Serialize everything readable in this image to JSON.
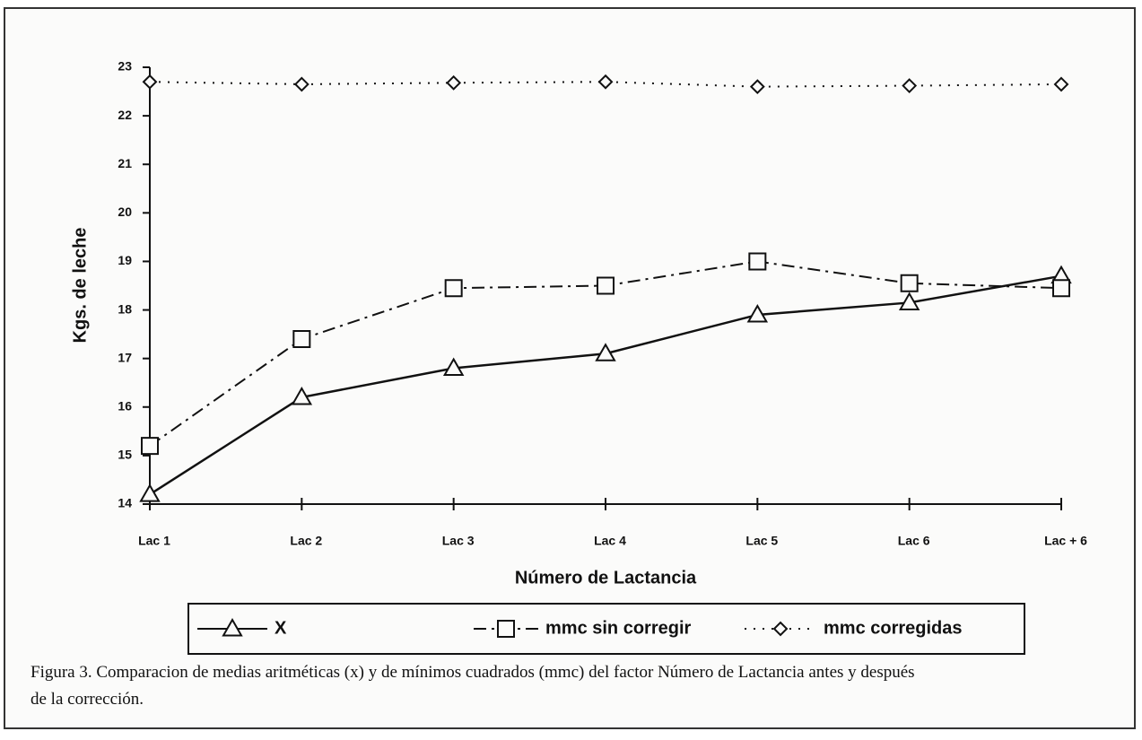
{
  "chart_data": {
    "type": "line",
    "y_label": "Kgs. de leche",
    "x_label": "Número de Lactancia",
    "categories": [
      "Lac 1",
      "Lac 2",
      "Lac 3",
      "Lac 4",
      "Lac 5",
      "Lac 6",
      "Lac + 6"
    ],
    "series": [
      {
        "name": "X",
        "color": "#111111",
        "marker": "triangle",
        "dash": "solid",
        "values": [
          14.2,
          16.2,
          16.8,
          17.1,
          17.9,
          18.15,
          18.7
        ]
      },
      {
        "name": "mmc sin corregir",
        "color": "#111111",
        "marker": "square",
        "dash": "dashdot",
        "values": [
          15.2,
          17.4,
          18.45,
          18.5,
          19.0,
          18.55,
          18.45
        ]
      },
      {
        "name": "mmc corregidas",
        "color": "#111111",
        "marker": "diamond",
        "dash": "dotted",
        "values": [
          22.7,
          22.65,
          22.68,
          22.7,
          22.6,
          22.62,
          22.65
        ]
      }
    ],
    "ylim": [
      14,
      23
    ],
    "yticks": [
      14,
      15,
      16,
      17,
      18,
      19,
      20,
      21,
      22,
      23
    ],
    "caption": "Figura 3.  Comparacion de medias aritméticas (x) y de mínimos cuadrados (mmc) del factor Número de Lactancia antes y después de la corrección."
  }
}
